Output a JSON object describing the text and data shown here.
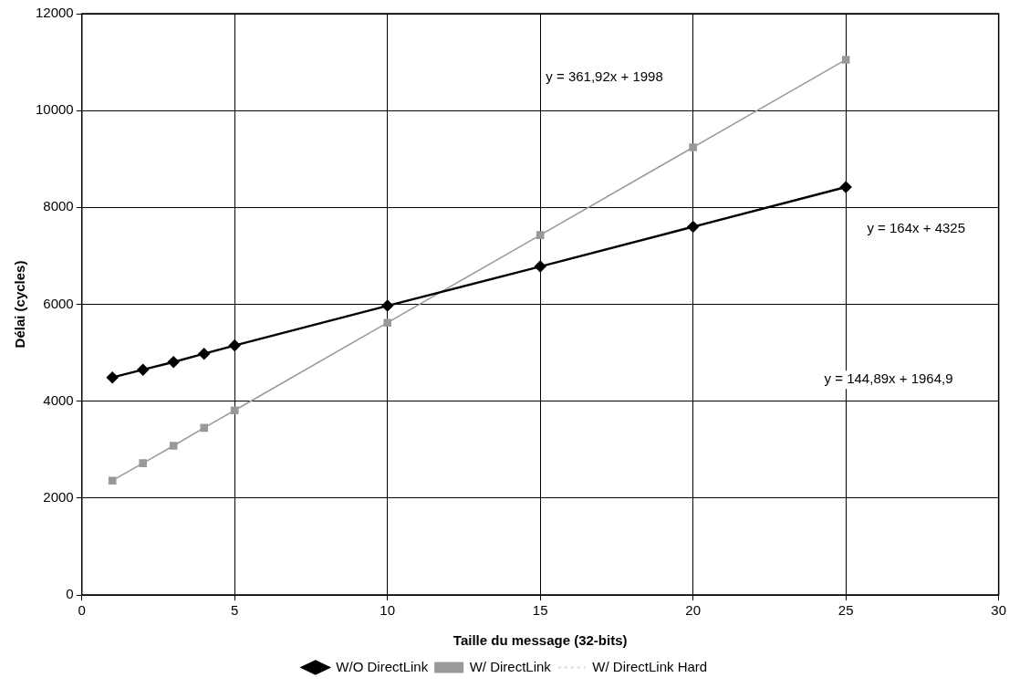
{
  "chart_data": {
    "type": "line",
    "xlabel": "Taille du message (32-bits)",
    "ylabel": "Délai (cycles)",
    "x": [
      1,
      2,
      3,
      4,
      5,
      10,
      15,
      20,
      25
    ],
    "series": [
      {
        "name": "W/O DirectLink",
        "color": "#000000",
        "marker": "diamond",
        "values": [
          4490,
          4650,
          4810,
          4980,
          5150,
          5970,
          6780,
          7600,
          8420
        ]
      },
      {
        "name": "W/ DirectLink",
        "color": "#999999",
        "marker": "square",
        "values": [
          2360,
          2720,
          3080,
          3450,
          3810,
          5620,
          7430,
          9240,
          11050
        ]
      },
      {
        "name": "W/ DirectLink Hard",
        "color": "#d9d9d9",
        "marker": "none",
        "line_style": "dotted",
        "values": [
          null,
          null,
          null,
          null,
          null,
          null,
          null,
          null,
          null
        ]
      }
    ],
    "xlim": [
      0,
      30
    ],
    "xticks": [
      0,
      5,
      10,
      15,
      20,
      25,
      30
    ],
    "ylim": [
      0,
      12000
    ],
    "yticks": [
      0,
      2000,
      4000,
      6000,
      8000,
      10000,
      12000
    ],
    "grid": true,
    "legend": "bottom",
    "annotations": [
      "y = 361,92x + 1998",
      "y = 164x + 4325",
      "y = 144,89x + 1964,9"
    ]
  }
}
